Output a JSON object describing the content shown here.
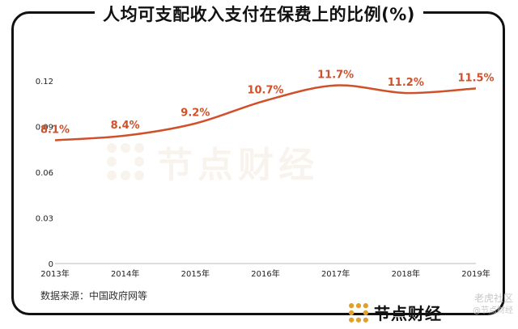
{
  "title": "人均可支配收入支付在保费上的比例(%)",
  "source": "数据来源：中国政府网等",
  "brand": "节点财经",
  "watermark": "节点财经",
  "corner_watermark": {
    "line1": "老虎社区",
    "line2": "@节点财经"
  },
  "colors": {
    "line": "#d0502a",
    "label": "#d0502a",
    "axis": "#222222",
    "frame": "#111111"
  },
  "chart_data": {
    "type": "line",
    "title": "人均可支配收入支付在保费上的比例(%)",
    "categories": [
      "2013年",
      "2014年",
      "2015年",
      "2016年",
      "2017年",
      "2018年",
      "2019年"
    ],
    "series": [
      {
        "values": [
          0.081,
          0.084,
          0.092,
          0.107,
          0.117,
          0.112,
          0.115
        ]
      }
    ],
    "data_labels": [
      "8.1%",
      "8.4%",
      "9.2%",
      "10.7%",
      "11.7%",
      "11.2%",
      "11.5%"
    ],
    "y_ticks": [
      0,
      0.03,
      0.06,
      0.09,
      0.12
    ],
    "y_tick_labels": [
      "0",
      "0.03",
      "0.06",
      "0.09",
      "0.12"
    ],
    "ylim": [
      0,
      0.12
    ],
    "grid": false,
    "smooth": true
  }
}
